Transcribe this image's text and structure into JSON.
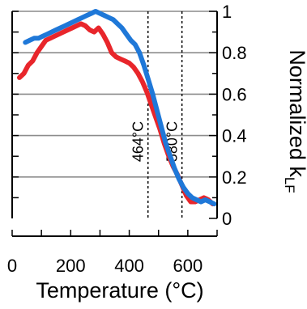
{
  "chart_data": {
    "type": "line",
    "title": "",
    "xlabel": "Temperature (°C)",
    "ylabel": "Normalized k",
    "ylabel_subscript": "LF",
    "xlim": [
      0,
      700
    ],
    "ylim": [
      0,
      1
    ],
    "x_ticks": [
      0,
      200,
      400,
      600
    ],
    "y_ticks": [
      0,
      0.2,
      0.4,
      0.6,
      0.8,
      1
    ],
    "y_tick_labels": [
      "0",
      "0.2",
      "0.4",
      "0.6",
      "0.8",
      "1"
    ],
    "x_tick_labels": [
      "0",
      "200",
      "400",
      "600"
    ],
    "grid": "horizontal",
    "vertical_markers": [
      {
        "x": 464,
        "label": "464°C"
      },
      {
        "x": 580,
        "label": "580°C"
      }
    ],
    "series": [
      {
        "color": "#e8262b",
        "x": [
          25,
          40,
          55,
          70,
          85,
          100,
          115,
          130,
          145,
          160,
          175,
          190,
          205,
          220,
          235,
          250,
          265,
          280,
          295,
          310,
          325,
          340,
          355,
          370,
          385,
          400,
          415,
          430,
          445,
          460,
          475,
          490,
          505,
          520,
          535,
          550,
          565,
          580,
          595,
          610,
          625,
          640,
          655,
          670,
          685
        ],
        "y": [
          0.68,
          0.7,
          0.74,
          0.76,
          0.8,
          0.83,
          0.86,
          0.87,
          0.88,
          0.89,
          0.9,
          0.91,
          0.92,
          0.93,
          0.94,
          0.93,
          0.91,
          0.9,
          0.92,
          0.89,
          0.85,
          0.8,
          0.78,
          0.77,
          0.76,
          0.75,
          0.73,
          0.7,
          0.66,
          0.61,
          0.55,
          0.49,
          0.43,
          0.36,
          0.3,
          0.25,
          0.21,
          0.16,
          0.11,
          0.08,
          0.08,
          0.09,
          0.1,
          0.09,
          0.07
        ]
      },
      {
        "color": "#1f78d8",
        "x": [
          45,
          60,
          75,
          90,
          105,
          120,
          135,
          150,
          165,
          180,
          195,
          210,
          225,
          240,
          255,
          270,
          285,
          300,
          315,
          330,
          345,
          360,
          375,
          390,
          405,
          420,
          435,
          450,
          465,
          480,
          495,
          510,
          525,
          540,
          555,
          570,
          585,
          600,
          615,
          630,
          645,
          660,
          675,
          690
        ],
        "y": [
          0.85,
          0.86,
          0.87,
          0.87,
          0.88,
          0.89,
          0.9,
          0.91,
          0.92,
          0.93,
          0.94,
          0.95,
          0.96,
          0.97,
          0.98,
          0.99,
          1.0,
          0.99,
          0.98,
          0.97,
          0.96,
          0.94,
          0.92,
          0.89,
          0.86,
          0.84,
          0.8,
          0.74,
          0.67,
          0.6,
          0.52,
          0.44,
          0.36,
          0.3,
          0.24,
          0.19,
          0.15,
          0.12,
          0.1,
          0.09,
          0.08,
          0.09,
          0.08,
          0.07
        ]
      }
    ]
  }
}
